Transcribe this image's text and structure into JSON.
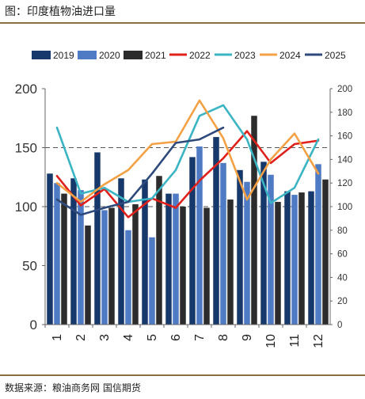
{
  "title": "图：印度植物油进口量",
  "source": "数据来源：粮油商务网 国信期货",
  "chart_data": {
    "type": "bar",
    "categories": [
      "1",
      "2",
      "3",
      "4",
      "5",
      "6",
      "7",
      "8",
      "9",
      "10",
      "11",
      "12"
    ],
    "bar_series": [
      {
        "name": "2019",
        "color": "#17386b",
        "values": [
          128,
          124,
          146,
          124,
          123,
          111,
          142,
          159,
          131,
          138,
          113,
          113
        ]
      },
      {
        "name": "2020",
        "color": "#4f7ac4",
        "values": [
          120,
          114,
          97,
          80,
          74,
          111,
          151,
          137,
          121,
          127,
          110,
          136
        ]
      },
      {
        "name": "2021",
        "color": "#2c2c2c",
        "values": [
          111,
          84,
          99,
          102,
          126,
          100,
          99,
          106,
          177,
          104,
          112,
          123
        ]
      }
    ],
    "line_series": [
      {
        "name": "2022",
        "color": "#e0201b",
        "axis": "right",
        "values": [
          126,
          101,
          115,
          91,
          107,
          99,
          122,
          141,
          164,
          137,
          153,
          156
        ]
      },
      {
        "name": "2023",
        "color": "#3bb4c4",
        "axis": "right",
        "values": [
          167,
          111,
          116,
          104,
          107,
          131,
          177,
          186,
          157,
          103,
          116,
          157
        ]
      },
      {
        "name": "2024",
        "color": "#f4a044",
        "axis": "right",
        "values": [
          120,
          104,
          119,
          131,
          153,
          155,
          190,
          158,
          106,
          140,
          162,
          128
        ]
      },
      {
        "name": "2025",
        "color": "#2e4a7c",
        "axis": "right",
        "values": [
          106,
          93,
          99,
          104,
          128,
          154,
          157,
          167
        ]
      }
    ],
    "y_left": {
      "min": 0,
      "max": 200,
      "ticks": [
        "0",
        "50",
        "100",
        "150",
        "200"
      ]
    },
    "y_right": {
      "min": 0,
      "max": 200,
      "ticks": [
        "0",
        "20",
        "40",
        "60",
        "80",
        "100",
        "120",
        "140",
        "160",
        "180",
        "200"
      ]
    },
    "dashed_gridlines": [
      100,
      150
    ],
    "legend": "top"
  }
}
